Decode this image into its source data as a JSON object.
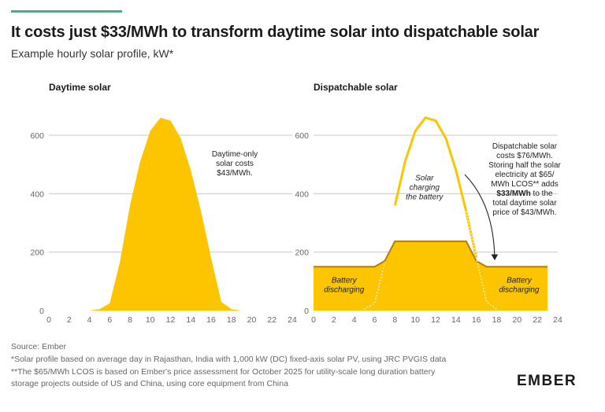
{
  "header": {
    "title": "It costs just $33/MWh to transform daytime solar into dispatchable solar",
    "subtitle": "Example hourly solar profile, kW*"
  },
  "colors": {
    "accent_bar": "#2bbd7e",
    "solar_fill": "#fcc500",
    "solar_line": "#fcc500",
    "battery_line": "#b07d10",
    "grid": "#c8c8c8",
    "axis_text": "#666666"
  },
  "chart_data": [
    {
      "type": "area",
      "title": "Daytime solar",
      "x": [
        0,
        1,
        2,
        3,
        4,
        5,
        6,
        7,
        8,
        9,
        10,
        11,
        12,
        13,
        14,
        15,
        16,
        17,
        18,
        19,
        20,
        21,
        22,
        23
      ],
      "series": [
        {
          "values": [
            0,
            0,
            0,
            0,
            0,
            5,
            25,
            165,
            360,
            510,
            615,
            660,
            650,
            590,
            480,
            340,
            180,
            30,
            5,
            0,
            0,
            0,
            0,
            0
          ]
        }
      ],
      "xlim": [
        0,
        24
      ],
      "ylim": [
        0,
        700
      ],
      "xticks": [
        0,
        2,
        4,
        6,
        8,
        10,
        12,
        14,
        16,
        18,
        20,
        22,
        24
      ],
      "yticks": [
        0,
        200,
        400,
        600
      ],
      "grid": true,
      "annotation": "Daytime-only\nsolar costs\n$43/MWh."
    },
    {
      "type": "area",
      "title": "Dispatchable solar",
      "x": [
        0,
        1,
        2,
        3,
        4,
        5,
        6,
        7,
        8,
        9,
        10,
        11,
        12,
        13,
        14,
        15,
        16,
        17,
        18,
        19,
        20,
        21,
        22,
        23
      ],
      "series": [
        {
          "values": [
            150,
            150,
            150,
            150,
            150,
            150,
            150,
            170,
            237,
            237,
            237,
            237,
            237,
            237,
            237,
            237,
            170,
            150,
            150,
            150,
            150,
            150,
            150,
            150
          ]
        },
        {
          "values": [
            0,
            0,
            0,
            0,
            0,
            5,
            25,
            165,
            360,
            510,
            615,
            660,
            650,
            590,
            480,
            340,
            180,
            30,
            5,
            0,
            0,
            0,
            0,
            0
          ]
        }
      ],
      "xlim": [
        0,
        24
      ],
      "ylim": [
        0,
        700
      ],
      "xticks": [
        0,
        2,
        4,
        6,
        8,
        10,
        12,
        14,
        16,
        18,
        20,
        22,
        24
      ],
      "yticks": [
        0,
        200,
        400,
        600
      ],
      "grid": true,
      "labels": {
        "battery_left": "Battery\ndischarging",
        "battery_right": "Battery\ndischarging",
        "solar_charging": "Solar\ncharging\nthe battery"
      },
      "annotation": {
        "lines": [
          "Dispatchable solar",
          "costs $76/MWh.",
          "Storing half the solar",
          "electricity at $65/",
          "MWh LCOS** adds",
          "$33/MWh to the",
          "total daytime solar",
          "price of $43/MWh."
        ],
        "bold_phrase": "$33/MWh"
      }
    }
  ],
  "footer": {
    "source": "Source: Ember",
    "note1": "*Solar profile based on average day in Rajasthan, India with 1,000 kW (DC) fixed-axis solar PV, using JRC PVGIS data",
    "note2": "**The $65/MWh LCOS is based on Ember's price assessment for October 2025 for utility-scale long duration battery",
    "note3": "storage projects outside of US and China, using core equipment from China",
    "logo": "EMBER"
  }
}
